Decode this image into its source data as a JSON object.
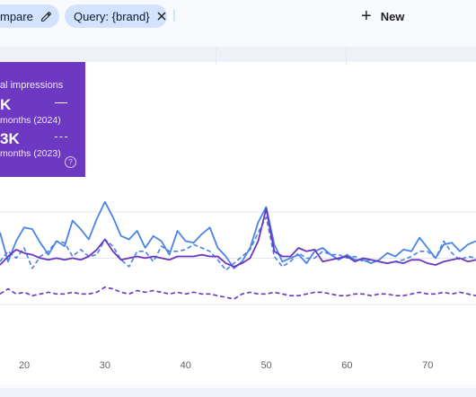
{
  "toolbar": {
    "compare_label": "mpare",
    "query_chip_label": "Query: {brand}",
    "new_label": "New"
  },
  "summary": {
    "metric_label": "al impressions",
    "current_value": "K",
    "current_period": "months (2024)",
    "previous_value": "3K",
    "previous_period": "months (2023)"
  },
  "colors": {
    "chip_bg": "#d3e3fd",
    "tile_bg": "#6d38c2",
    "clicks_line": "#4a83e8",
    "impressions_line": "#6a35c0"
  },
  "chart_data": {
    "type": "line",
    "x_ticks": [
      "20",
      "30",
      "40",
      "50",
      "60",
      "70"
    ],
    "xlim": [
      17,
      76
    ],
    "y_gridlines": 3,
    "series": [
      {
        "name": "",
        "color": "#4a83e8",
        "dash": "solid",
        "x": [
          17,
          18,
          19,
          20,
          21,
          22,
          23,
          24,
          25,
          26,
          27,
          28,
          29,
          30,
          31,
          32,
          33,
          34,
          35,
          36,
          37,
          38,
          39,
          40,
          41,
          42,
          43,
          44,
          45,
          46,
          47,
          48,
          49,
          50,
          51,
          52,
          53,
          54,
          55,
          56,
          57,
          58,
          59,
          60,
          61,
          62,
          63,
          64,
          65,
          66,
          67,
          68,
          69,
          70,
          71,
          72,
          73,
          74,
          75,
          76
        ],
        "y": [
          69,
          52,
          64,
          72,
          71,
          63,
          56,
          64,
          61,
          76,
          71,
          65,
          77,
          87,
          78,
          67,
          65,
          70,
          60,
          67,
          64,
          56,
          70,
          64,
          63,
          68,
          72,
          60,
          55,
          48,
          52,
          60,
          75,
          84,
          62,
          52,
          54,
          56,
          51,
          58,
          60,
          56,
          53,
          56,
          53,
          53,
          51,
          53,
          57,
          55,
          59,
          58,
          66,
          60,
          54,
          62,
          63,
          58,
          62,
          64
        ]
      },
      {
        "name": "",
        "color": "#4a83e8",
        "dash": "dashed",
        "x": [
          17,
          18,
          19,
          20,
          21,
          22,
          23,
          24,
          25,
          26,
          27,
          28,
          29,
          30,
          31,
          32,
          33,
          34,
          35,
          36,
          37,
          38,
          39,
          40,
          41,
          42,
          43,
          44,
          45,
          46,
          47,
          48,
          49,
          50,
          51,
          52,
          53,
          54,
          55,
          56,
          57,
          58,
          59,
          60,
          61,
          62,
          63,
          64,
          65,
          66,
          67,
          68,
          69,
          70,
          71,
          72,
          73,
          74,
          75,
          76
        ],
        "y": [
          52,
          58,
          54,
          60,
          48,
          55,
          58,
          64,
          63,
          55,
          59,
          55,
          56,
          65,
          61,
          53,
          49,
          58,
          58,
          52,
          61,
          58,
          58,
          59,
          62,
          60,
          58,
          53,
          47,
          51,
          55,
          59,
          69,
          78,
          55,
          49,
          52,
          57,
          54,
          54,
          58,
          56,
          56,
          54,
          55,
          52,
          53,
          52,
          51,
          52,
          53,
          55,
          58,
          58,
          54,
          64,
          57,
          53,
          55,
          54
        ]
      },
      {
        "name": "",
        "color": "#6a35c0",
        "dash": "solid",
        "x": [
          17,
          18,
          19,
          20,
          21,
          22,
          23,
          24,
          25,
          26,
          27,
          28,
          29,
          30,
          31,
          32,
          33,
          34,
          35,
          36,
          37,
          38,
          39,
          40,
          41,
          42,
          43,
          44,
          45,
          46,
          47,
          48,
          49,
          50,
          51,
          52,
          53,
          54,
          55,
          56,
          57,
          58,
          59,
          60,
          61,
          62,
          63,
          64,
          65,
          66,
          67,
          68,
          69,
          70,
          71,
          72,
          73,
          74,
          75,
          76
        ],
        "y": [
          50,
          55,
          59,
          57,
          56,
          54,
          53,
          54,
          53,
          54,
          53,
          55,
          59,
          65,
          58,
          53,
          54,
          55,
          54,
          55,
          54,
          53,
          55,
          55,
          55,
          56,
          55,
          55,
          51,
          49,
          51,
          54,
          64,
          83,
          58,
          55,
          55,
          60,
          58,
          59,
          52,
          53,
          54,
          55,
          52,
          54,
          53,
          52,
          51,
          52,
          51,
          53,
          53,
          51,
          50,
          52,
          53,
          54,
          52,
          53
        ]
      },
      {
        "name": "",
        "color": "#6a35c0",
        "dash": "dashed",
        "x": [
          17,
          18,
          19,
          20,
          21,
          22,
          23,
          24,
          25,
          26,
          27,
          28,
          29,
          30,
          31,
          32,
          33,
          34,
          35,
          36,
          37,
          38,
          39,
          40,
          41,
          42,
          43,
          44,
          45,
          46,
          47,
          48,
          49,
          50,
          51,
          52,
          53,
          54,
          55,
          56,
          57,
          58,
          59,
          60,
          61,
          62,
          63,
          64,
          65,
          66,
          67,
          68,
          69,
          70,
          71,
          72,
          73,
          74,
          75,
          76
        ],
        "y": [
          33,
          36,
          33,
          34,
          32,
          33,
          34,
          33,
          33,
          34,
          33,
          33,
          34,
          37,
          36,
          34,
          33,
          35,
          34,
          35,
          34,
          33,
          34,
          33,
          34,
          33,
          33,
          32,
          31,
          30,
          33,
          34,
          33,
          33,
          34,
          33,
          32,
          32,
          33,
          34,
          34,
          33,
          32,
          32,
          33,
          33,
          32,
          33,
          33,
          32,
          32,
          33,
          34,
          33,
          33,
          34,
          33,
          34,
          33,
          32
        ]
      }
    ]
  }
}
